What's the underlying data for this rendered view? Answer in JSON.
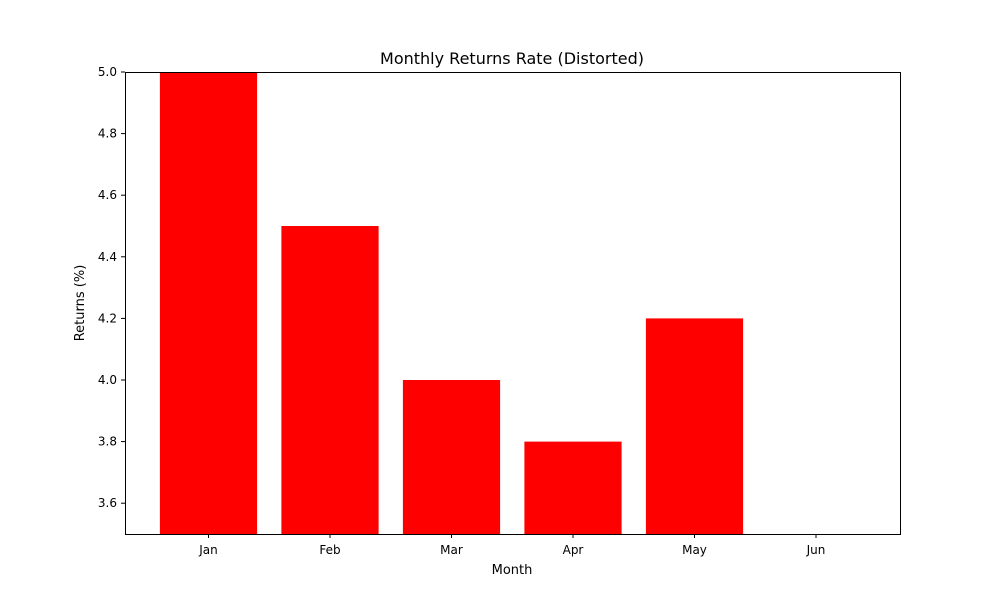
{
  "chart_data": {
    "type": "bar",
    "title": "Monthly Returns Rate (Distorted)",
    "xlabel": "Month",
    "ylabel": "Returns (%)",
    "categories": [
      "Jan",
      "Feb",
      "Mar",
      "Apr",
      "May",
      "Jun"
    ],
    "values": [
      5.0,
      4.5,
      4.0,
      3.8,
      4.2,
      3.5
    ],
    "ylim": [
      3.5,
      5.0
    ],
    "yticks": [
      "3.6",
      "3.8",
      "4.0",
      "4.2",
      "4.4",
      "4.6",
      "4.8",
      "5.0"
    ],
    "bar_color": "#ff0000",
    "grid": false
  }
}
